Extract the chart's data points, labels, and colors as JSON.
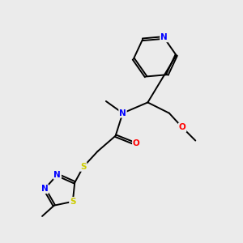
{
  "bg_color": "#ebebeb",
  "atom_colors": {
    "N": "#0000ff",
    "O": "#ff0000",
    "S": "#cccc00"
  },
  "bond_color": "#000000",
  "figsize": [
    3.0,
    3.0
  ],
  "dpi": 100
}
